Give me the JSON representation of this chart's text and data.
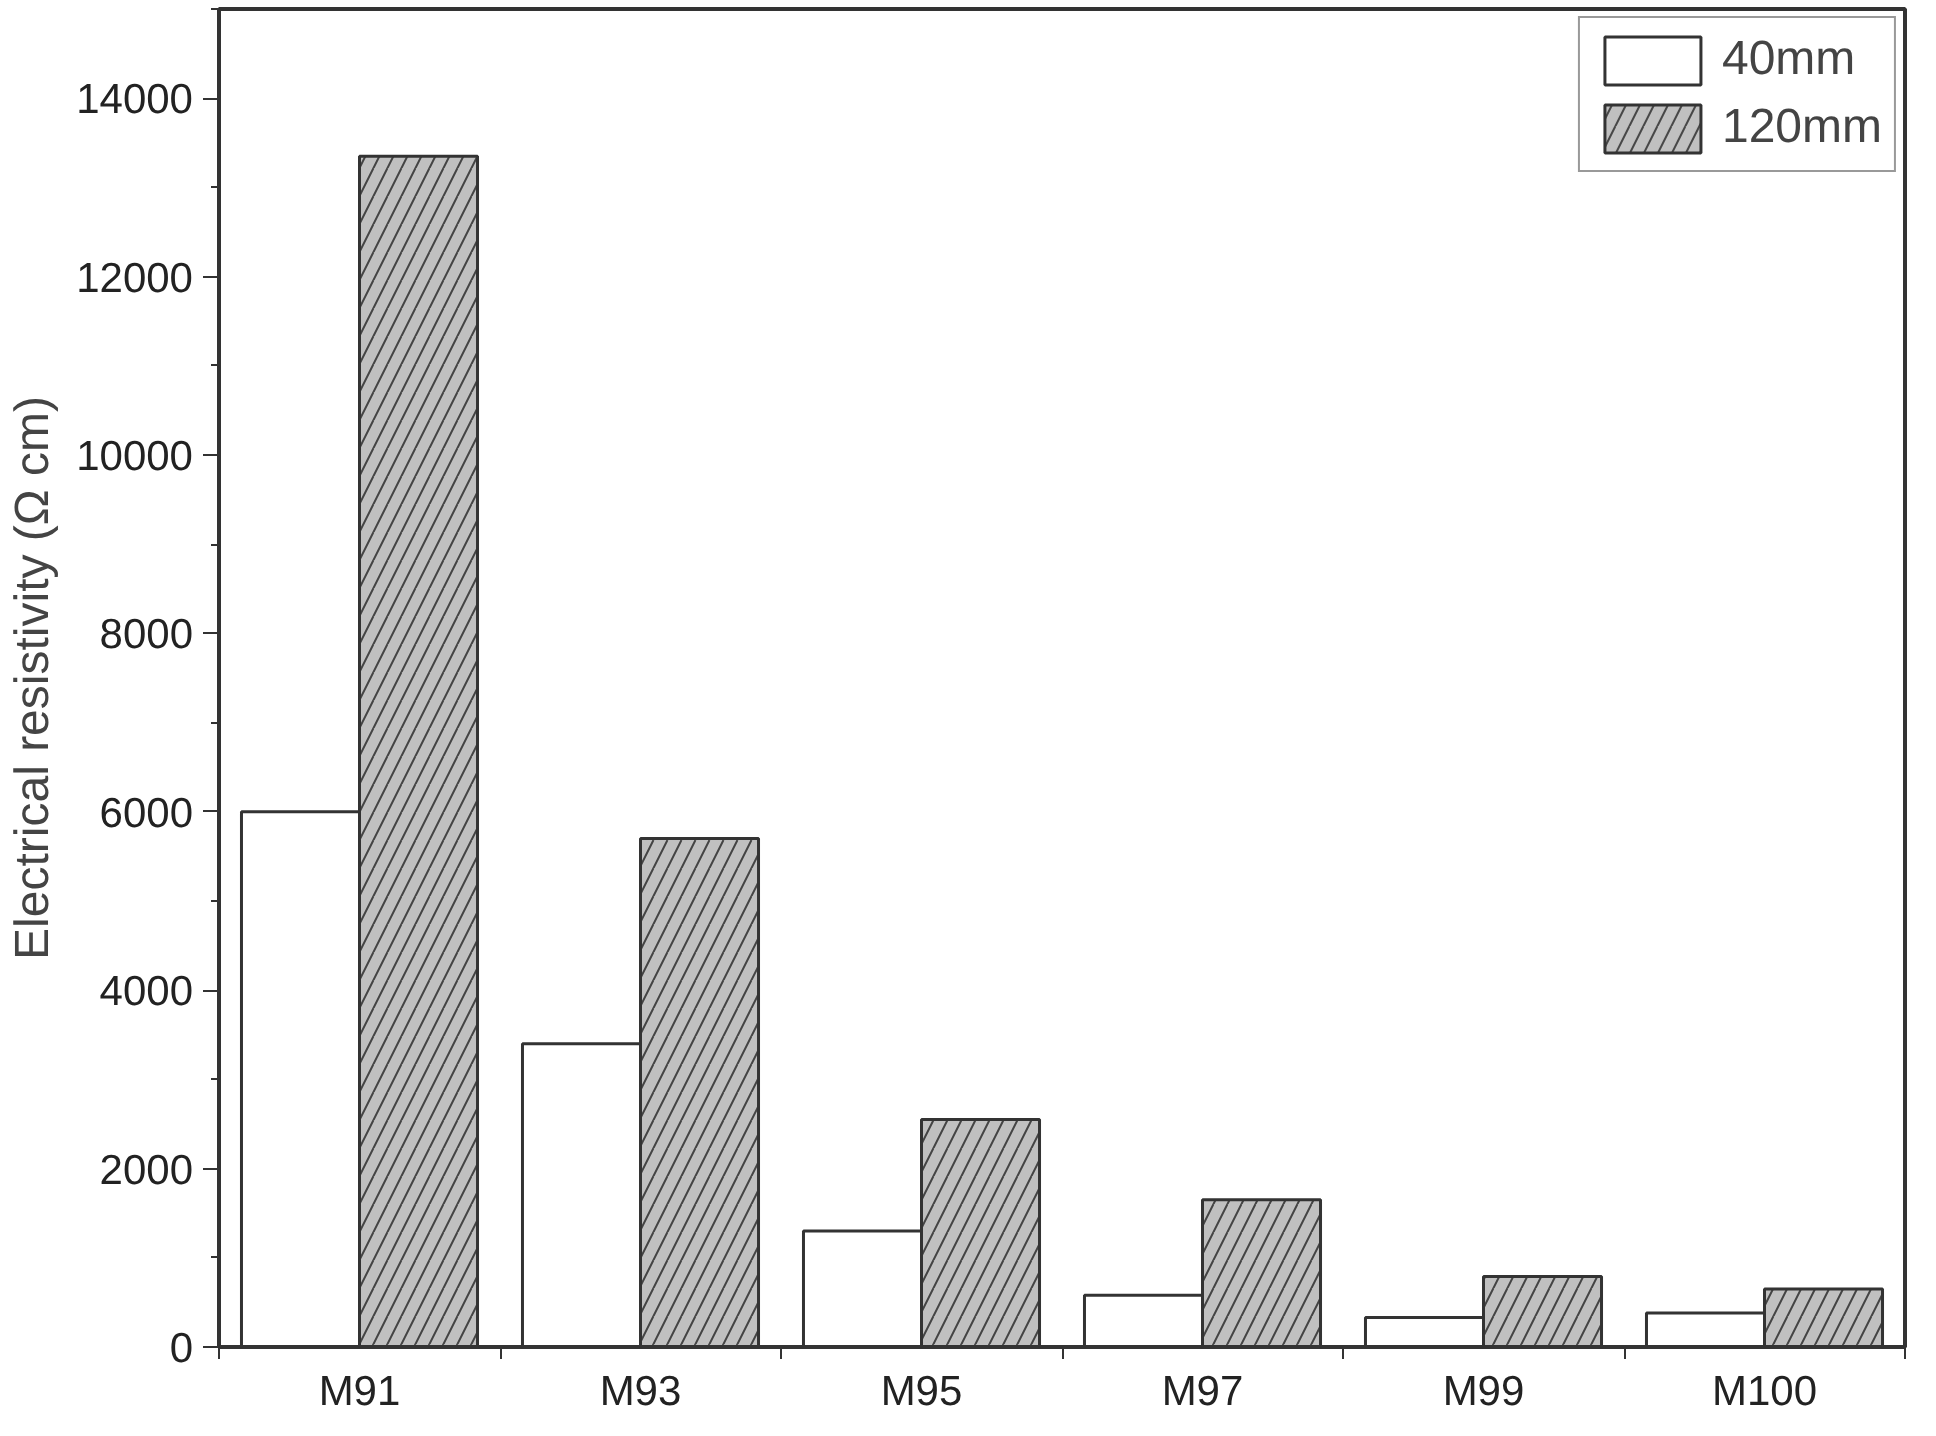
{
  "chart_data": {
    "type": "bar",
    "ylabel": "Electrical resistivity (Ω cm)",
    "categories": [
      "M91",
      "M93",
      "M95",
      "M97",
      "M99",
      "M100"
    ],
    "series": [
      {
        "name": "40mm",
        "color": "#ffffff",
        "values": [
          6000,
          3400,
          1300,
          580,
          330,
          380
        ]
      },
      {
        "name": "120mm",
        "color": "#c0c0c0",
        "values": [
          13350,
          5700,
          2550,
          1650,
          790,
          650
        ]
      }
    ],
    "ylim": [
      0,
      15000
    ],
    "yticks": [
      0,
      2000,
      4000,
      6000,
      8000,
      10000,
      12000,
      14000
    ],
    "grid": false,
    "legend": "top right"
  }
}
